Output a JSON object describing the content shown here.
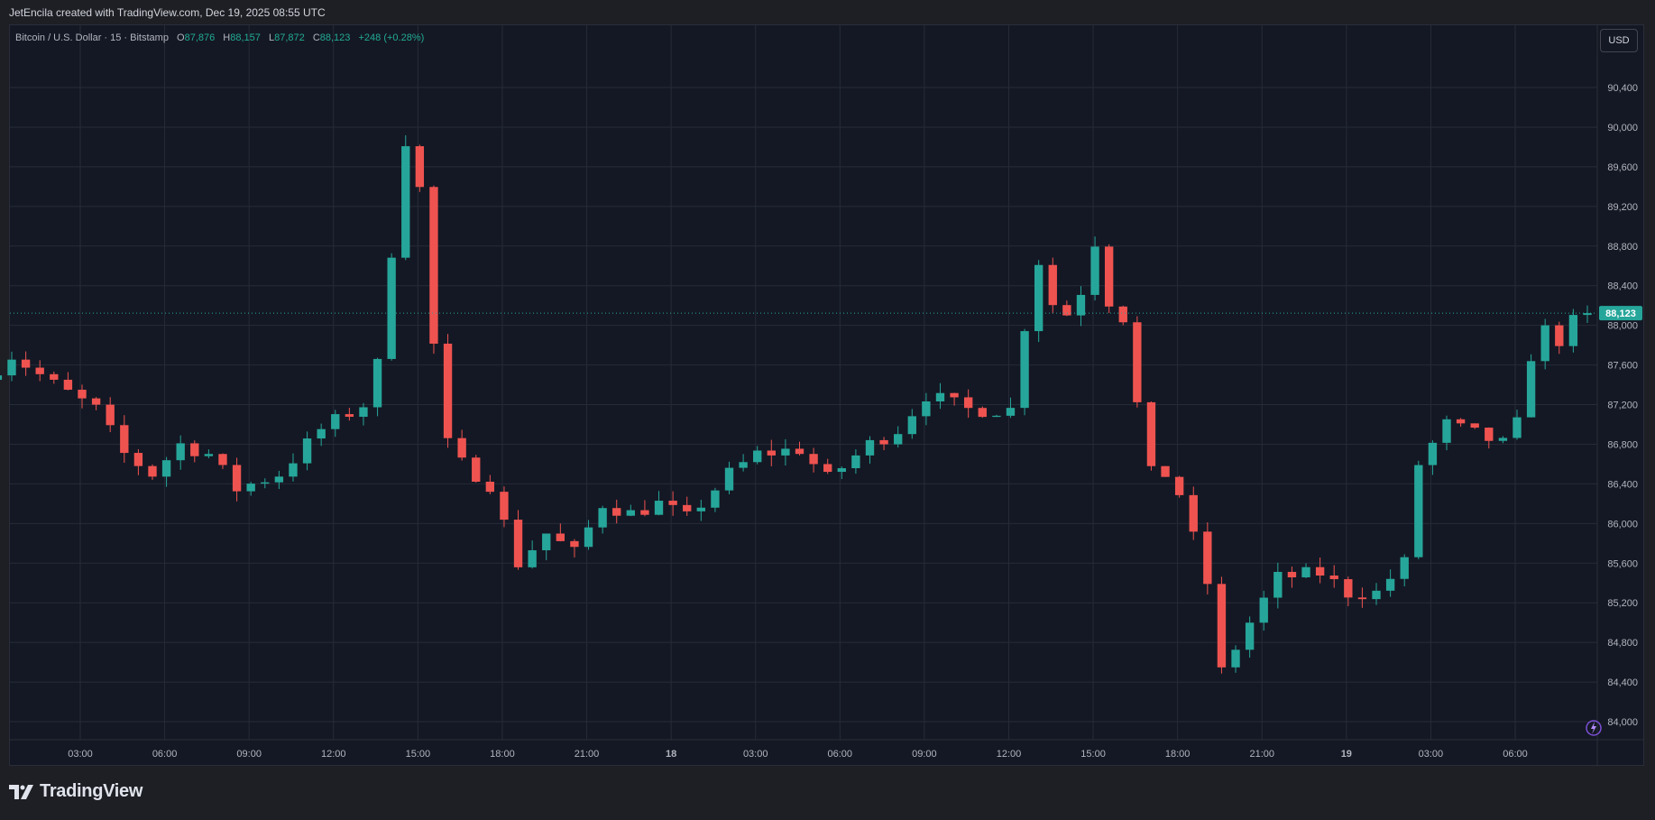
{
  "credit": "JetEncila created with TradingView.com, Dec 19, 2025 08:55 UTC",
  "legend": {
    "symbol": "Bitcoin / U.S. Dollar · 15 · Bitstamp",
    "o_label": "O",
    "o_value": "87,876",
    "h_label": "H",
    "h_value": "88,157",
    "l_label": "L",
    "l_value": "87,872",
    "c_label": "C",
    "c_value": "88,123",
    "change": "+248 (+0.28%)"
  },
  "currency_button": "USD",
  "brand": "TradingView",
  "colors": {
    "up": "#26a69a",
    "down": "#ef5350",
    "background": "#141824",
    "grid": "#262b38",
    "last_price": "#26a69a"
  },
  "icons": [
    "tradingview-logo-icon",
    "lightning-icon"
  ],
  "chart_data": {
    "type": "candlestick",
    "title": "Bitcoin / U.S. Dollar · 15 · Bitstamp",
    "xlabel": "",
    "ylabel": "",
    "ylim": [
      83800,
      90700
    ],
    "y_ticks": [
      84000,
      84400,
      84800,
      85200,
      85600,
      86000,
      86400,
      86800,
      87200,
      87600,
      88000,
      88400,
      88800,
      89200,
      89600,
      90000,
      90400
    ],
    "y_tick_labels": [
      "84,000",
      "84,400",
      "84,800",
      "85,200",
      "85,600",
      "86,000",
      "86,400",
      "86,800",
      "87,200",
      "87,600",
      "88,000",
      "88,400",
      "88,800",
      "89,200",
      "89,600",
      "90,000",
      "90,400"
    ],
    "x_ticks": [
      "03:00",
      "06:00",
      "09:00",
      "12:00",
      "15:00",
      "18:00",
      "21:00",
      "18",
      "03:00",
      "06:00",
      "09:00",
      "12:00",
      "15:00",
      "18:00",
      "21:00",
      "19",
      "03:00",
      "06:00"
    ],
    "last_price": 88123,
    "last_price_label": "88,123",
    "grid": true,
    "interval_minutes": 15,
    "keyframes": [
      {
        "t": "Dec 17 00:00",
        "p": 87450
      },
      {
        "t": "Dec 17 01:00",
        "p": 87700
      },
      {
        "t": "Dec 17 02:30",
        "p": 87400
      },
      {
        "t": "Dec 17 04:00",
        "p": 87150
      },
      {
        "t": "Dec 17 05:00",
        "p": 86700
      },
      {
        "t": "Dec 17 06:00",
        "p": 86500
      },
      {
        "t": "Dec 17 07:00",
        "p": 86800
      },
      {
        "t": "Dec 17 08:00",
        "p": 86700
      },
      {
        "t": "Dec 17 09:00",
        "p": 86350
      },
      {
        "t": "Dec 17 10:30",
        "p": 86500
      },
      {
        "t": "Dec 17 12:00",
        "p": 86950
      },
      {
        "t": "Dec 17 13:30",
        "p": 87200
      },
      {
        "t": "Dec 17 14:15",
        "p": 87800
      },
      {
        "t": "Dec 17 14:45",
        "p": 89700
      },
      {
        "t": "Dec 17 15:15",
        "p": 90050
      },
      {
        "t": "Dec 17 15:45",
        "p": 88700
      },
      {
        "t": "Dec 17 16:15",
        "p": 86900
      },
      {
        "t": "Dec 17 17:00",
        "p": 86600
      },
      {
        "t": "Dec 17 18:00",
        "p": 86400
      },
      {
        "t": "Dec 17 19:00",
        "p": 85600
      },
      {
        "t": "Dec 17 20:00",
        "p": 85900
      },
      {
        "t": "Dec 17 21:00",
        "p": 85700
      },
      {
        "t": "Dec 17 22:00",
        "p": 86200
      },
      {
        "t": "Dec 17 23:00",
        "p": 86100
      },
      {
        "t": "Dec 18 00:00",
        "p": 86200
      },
      {
        "t": "Dec 18 01:00",
        "p": 86050
      },
      {
        "t": "Dec 18 02:30",
        "p": 86500
      },
      {
        "t": "Dec 18 03:30",
        "p": 86700
      },
      {
        "t": "Dec 18 05:00",
        "p": 86750
      },
      {
        "t": "Dec 18 06:00",
        "p": 86450
      },
      {
        "t": "Dec 18 07:30",
        "p": 86800
      },
      {
        "t": "Dec 18 08:30",
        "p": 86950
      },
      {
        "t": "Dec 18 09:30",
        "p": 87300
      },
      {
        "t": "Dec 18 11:00",
        "p": 87150
      },
      {
        "t": "Dec 18 12:30",
        "p": 87150
      },
      {
        "t": "Dec 18 13:00",
        "p": 88000
      },
      {
        "t": "Dec 18 13:30",
        "p": 88650
      },
      {
        "t": "Dec 18 14:15",
        "p": 88000
      },
      {
        "t": "Dec 18 15:00",
        "p": 88350
      },
      {
        "t": "Dec 18 15:30",
        "p": 88850
      },
      {
        "t": "Dec 18 16:00",
        "p": 88250
      },
      {
        "t": "Dec 18 16:45",
        "p": 88000
      },
      {
        "t": "Dec 18 17:15",
        "p": 86400
      },
      {
        "t": "Dec 18 17:45",
        "p": 86600
      },
      {
        "t": "Dec 18 18:30",
        "p": 86300
      },
      {
        "t": "Dec 18 19:30",
        "p": 85400
      },
      {
        "t": "Dec 18 20:00",
        "p": 84500
      },
      {
        "t": "Dec 18 21:00",
        "p": 85000
      },
      {
        "t": "Dec 18 22:00",
        "p": 85450
      },
      {
        "t": "Dec 18 23:30",
        "p": 85500
      },
      {
        "t": "Dec 19 00:30",
        "p": 85300
      },
      {
        "t": "Dec 19 01:30",
        "p": 85300
      },
      {
        "t": "Dec 19 02:30",
        "p": 85600
      },
      {
        "t": "Dec 19 03:00",
        "p": 86600
      },
      {
        "t": "Dec 19 04:00",
        "p": 87000
      },
      {
        "t": "Dec 19 05:00",
        "p": 86900
      },
      {
        "t": "Dec 19 06:00",
        "p": 86800
      },
      {
        "t": "Dec 19 06:30",
        "p": 87000
      },
      {
        "t": "Dec 19 07:00",
        "p": 87700
      },
      {
        "t": "Dec 19 07:30",
        "p": 87950
      },
      {
        "t": "Dec 19 08:00",
        "p": 87850
      },
      {
        "t": "Dec 19 08:45",
        "p": 88123
      }
    ]
  }
}
